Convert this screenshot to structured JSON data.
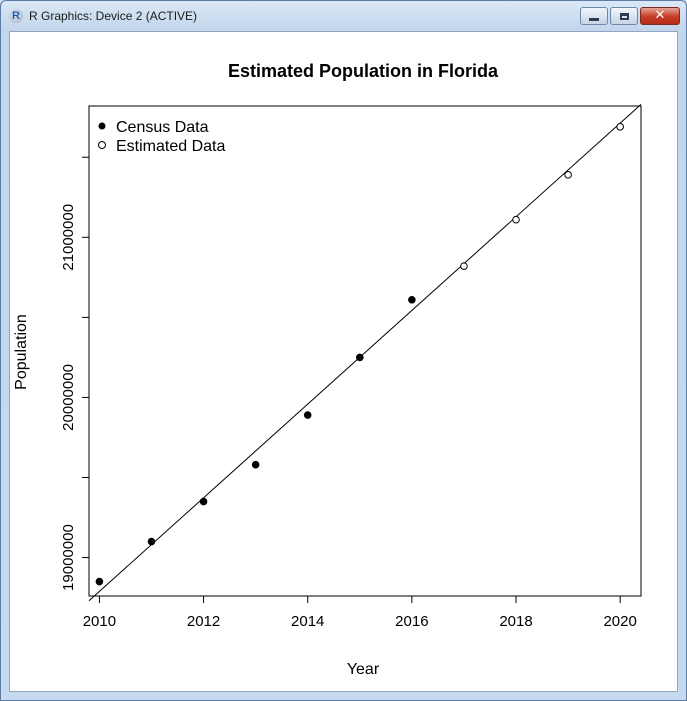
{
  "window": {
    "title": "R Graphics: Device 2 (ACTIVE)",
    "icon": "r-logo-icon",
    "controls": [
      "minimize-icon",
      "maximize-icon",
      "close-icon"
    ]
  },
  "chart_data": {
    "type": "scatter",
    "title": "Estimated Population in Florida",
    "xlabel": "Year",
    "ylabel": "Population",
    "xlim": [
      2009.8,
      2020.4
    ],
    "ylim": [
      18760000,
      21820000
    ],
    "x_ticks": [
      2010,
      2012,
      2014,
      2016,
      2018,
      2020
    ],
    "x_tick_labels": [
      "2010",
      "2012",
      "2014",
      "2016",
      "2018",
      "2020"
    ],
    "y_ticks": [
      19000000,
      19500000,
      20000000,
      20500000,
      21000000,
      21500000
    ],
    "y_tick_labels": [
      "19000000",
      "",
      "20000000",
      "",
      "21000000",
      ""
    ],
    "legend": {
      "position": "top-left",
      "entries": [
        "Census Data",
        "Estimated Data"
      ]
    },
    "series": [
      {
        "name": "Census Data",
        "marker": "filled-circle",
        "x": [
          2010,
          2011,
          2012,
          2013,
          2014,
          2015,
          2016
        ],
        "y": [
          18850000,
          19100000,
          19350000,
          19580000,
          19890000,
          20250000,
          20610000
        ]
      },
      {
        "name": "Estimated Data",
        "marker": "open-circle",
        "x": [
          2017,
          2018,
          2019,
          2020
        ],
        "y": [
          20820000,
          21110000,
          21390000,
          21690000
        ]
      }
    ],
    "trend_line": {
      "x": [
        2009.8,
        2020.4
      ],
      "y": [
        18730000,
        21830000
      ]
    },
    "grid": false
  }
}
